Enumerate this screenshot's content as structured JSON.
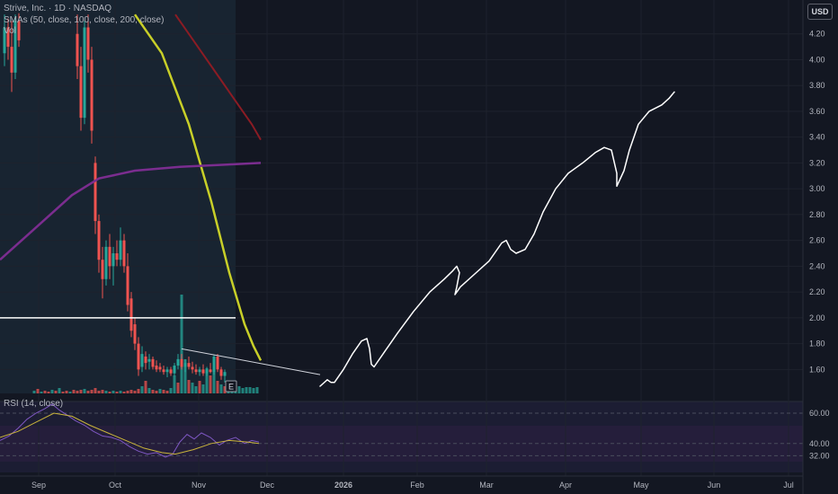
{
  "legend": {
    "symbol": "Strive, Inc. · 1D · NASDAQ",
    "smas": "SMAs (50, close, 100, close, 200, close)",
    "volume": "Vol"
  },
  "currency_button": "USD",
  "rsi_label": "RSI (14, close)",
  "earnings_marker": "E",
  "price_axis": {
    "ticks": [
      "4.20",
      "4.00",
      "3.80",
      "3.60",
      "3.40",
      "3.20",
      "3.00",
      "2.80",
      "2.60",
      "2.40",
      "2.20",
      "2.00",
      "1.80",
      "1.60"
    ],
    "values": [
      4.2,
      4.0,
      3.8,
      3.6,
      3.4,
      3.2,
      3.0,
      2.8,
      2.6,
      2.4,
      2.2,
      2.0,
      1.8,
      1.6
    ]
  },
  "rsi_axis": {
    "ticks": [
      "60.00",
      "40.00",
      "32.00"
    ],
    "values": [
      60,
      40,
      32
    ]
  },
  "time_axis": {
    "ticks": [
      "Sep",
      "Oct",
      "Nov",
      "Dec",
      "2026",
      "Feb",
      "Mar",
      "Apr",
      "May",
      "Jun",
      "Jul"
    ]
  },
  "colors": {
    "background": "#131722",
    "grid": "#1e222d",
    "up_candle": "#26a69a",
    "down_candle": "#ef5350",
    "sma50": "#c8cf28",
    "sma100": "#7b2d8f",
    "sma200": "#8b1c24",
    "rsi_line": "#7e57c2",
    "rsi_ma": "#c9b43b",
    "drawing": "#ffffff"
  },
  "chart_data": {
    "type": "candlestick",
    "symbol": "Strive, Inc.",
    "interval": "1D",
    "exchange": "NASDAQ",
    "ylim": [
      1.42,
      4.35
    ],
    "indicators": [
      "SMA 50",
      "SMA 100",
      "SMA 200",
      "Volume",
      "RSI 14"
    ],
    "horizontal_line": 2.0,
    "close_samples": [
      4.1,
      3.85,
      3.5,
      2.95,
      2.55,
      2.4,
      2.15,
      1.85,
      1.65,
      1.75,
      1.7,
      1.68
    ],
    "sma50_samples": [
      4.3,
      4.0,
      3.6,
      3.1,
      2.6,
      2.1,
      1.75
    ],
    "sma100_samples": [
      2.3,
      2.55,
      2.9,
      3.1,
      3.17,
      3.2
    ],
    "sma200_samples": [
      4.3,
      4.0,
      3.75,
      3.4
    ],
    "projection_path": [
      1.5,
      1.85,
      1.6,
      2.05,
      2.4,
      2.2,
      2.6,
      2.5,
      3.1,
      3.3,
      3.0,
      3.55,
      3.72
    ],
    "rsi_samples": [
      42,
      45,
      56,
      66,
      59,
      48,
      43,
      36,
      32,
      42,
      44,
      41
    ],
    "rsi_ma_samples": [
      44,
      48,
      55,
      60,
      58,
      50,
      44,
      38,
      34,
      39,
      41,
      40
    ]
  }
}
